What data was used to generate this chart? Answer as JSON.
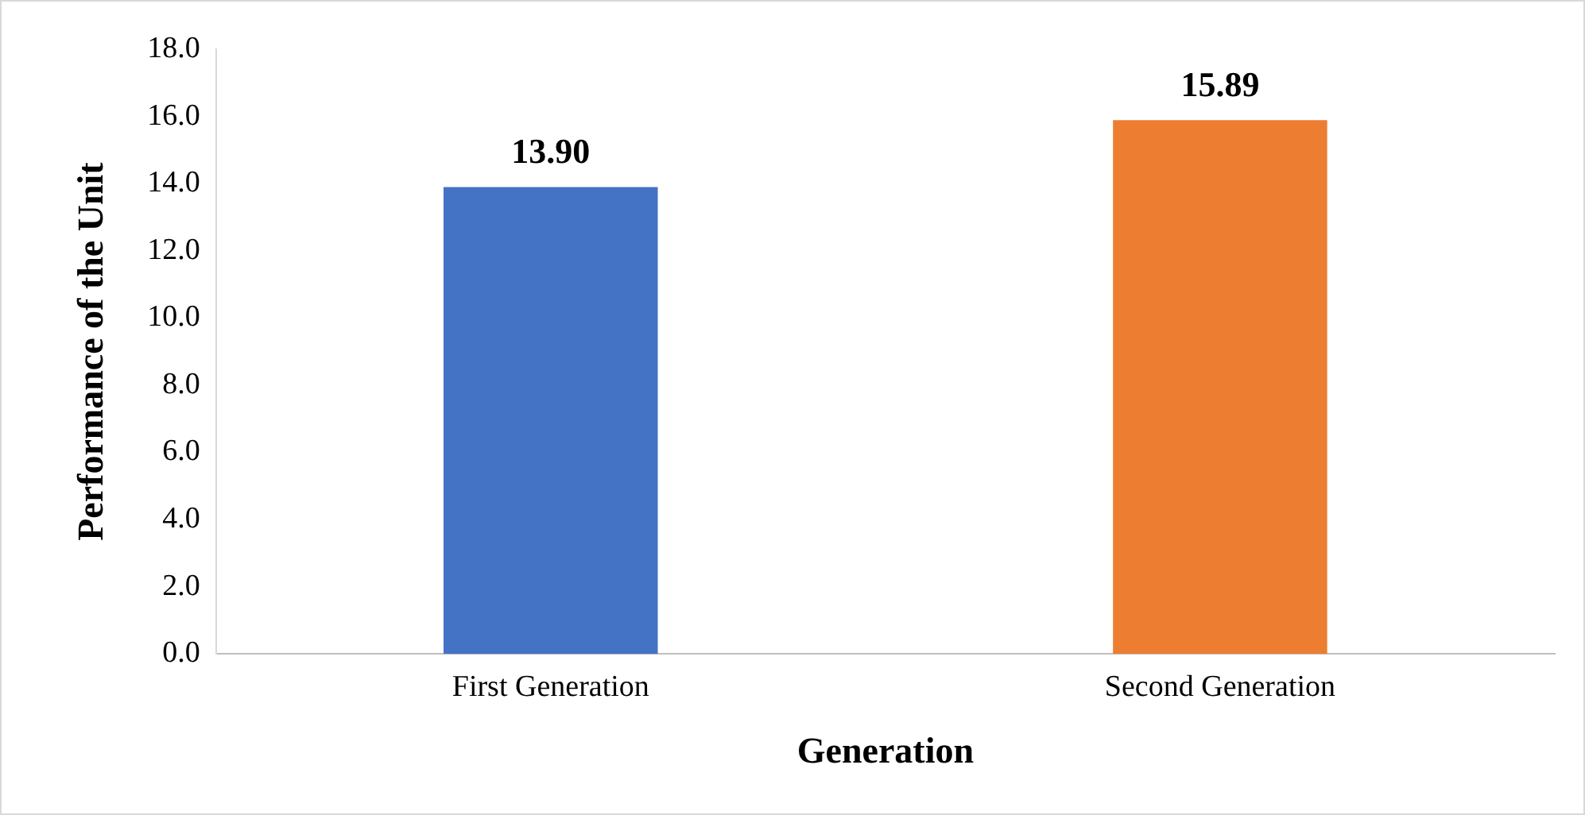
{
  "chart_data": {
    "type": "bar",
    "xlabel": "Generation",
    "ylabel": "Performance of the Unit",
    "categories": [
      "First Generation",
      "Second Generation"
    ],
    "values": [
      13.9,
      15.89
    ],
    "colors": [
      "#4472c4",
      "#ed7d31"
    ],
    "value_labels": [
      "13.90",
      "15.89"
    ],
    "ylim": [
      0,
      18
    ],
    "yticks": [
      {
        "value": 0,
        "label": "0.0"
      },
      {
        "value": 2,
        "label": "2.0"
      },
      {
        "value": 4,
        "label": "4.0"
      },
      {
        "value": 6,
        "label": "6.0"
      },
      {
        "value": 8,
        "label": "8.0"
      },
      {
        "value": 10,
        "label": "10.0"
      },
      {
        "value": 12,
        "label": "12.0"
      },
      {
        "value": 14,
        "label": "14.0"
      },
      {
        "value": 16,
        "label": "16.0"
      },
      {
        "value": 18,
        "label": "18.0"
      }
    ],
    "grid": false,
    "legend": false
  }
}
